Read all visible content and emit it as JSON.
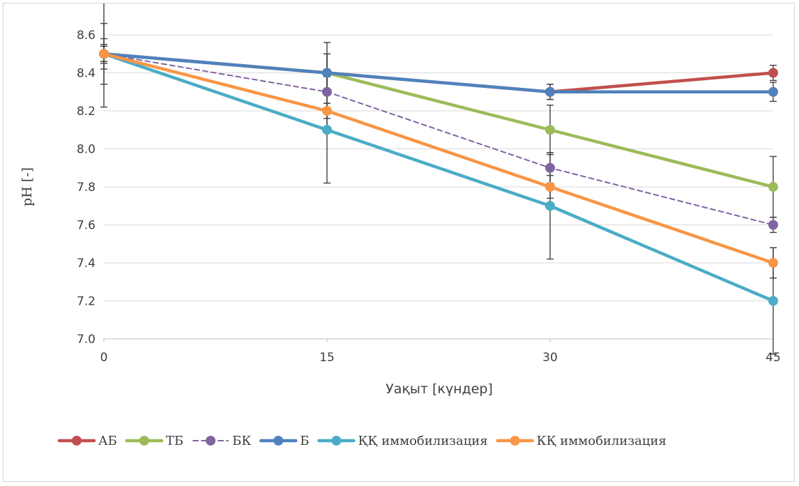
{
  "chart_data": {
    "type": "line",
    "title": "",
    "xlabel": "Уақыт [күндер]",
    "ylabel": "pH [-]",
    "x": [
      0,
      15,
      30,
      45
    ],
    "xlim": [
      0,
      45
    ],
    "ylim": [
      7.0,
      8.6
    ],
    "x_ticks": [
      "0",
      "15",
      "30",
      "45"
    ],
    "y_ticks": [
      "7.0",
      "7.2",
      "7.4",
      "7.6",
      "7.8",
      "8.0",
      "8.2",
      "8.4",
      "8.6"
    ],
    "grid": "horizontal",
    "legend_position": "bottom",
    "series": [
      {
        "name": "АБ",
        "color": "#c0504d",
        "dashed": false,
        "values": [
          8.5,
          8.4,
          8.3,
          8.4
        ],
        "err": [
          0.05,
          0.1,
          0.04,
          0.04
        ]
      },
      {
        "name": "ТБ",
        "color": "#9bbb59",
        "dashed": false,
        "values": [
          8.5,
          8.4,
          8.1,
          7.8
        ],
        "err": [
          0.04,
          0.1,
          0.13,
          0.16
        ]
      },
      {
        "name": "БК",
        "color": "#8064a2",
        "dashed": true,
        "values": [
          8.5,
          8.3,
          7.9,
          7.6
        ],
        "err": [
          0.16,
          0.2,
          0.08,
          0.04
        ]
      },
      {
        "name": "Б",
        "color": "#4f81bd",
        "dashed": false,
        "values": [
          8.5,
          8.4,
          8.3,
          8.3
        ],
        "err": [
          0.04,
          0.16,
          0.04,
          0.05
        ]
      },
      {
        "name": "ҚҚ иммобилизация",
        "color": "#4bacc6",
        "dashed": false,
        "values": [
          8.5,
          8.1,
          7.7,
          7.2
        ],
        "err": [
          0.28,
          0.28,
          0.28,
          0.28
        ]
      },
      {
        "name": "КҚ иммобилизация",
        "color": "#f79646",
        "dashed": false,
        "values": [
          8.5,
          8.2,
          7.8,
          7.4
        ],
        "err": [
          0.08,
          0.04,
          0.06,
          0.08
        ]
      }
    ]
  }
}
